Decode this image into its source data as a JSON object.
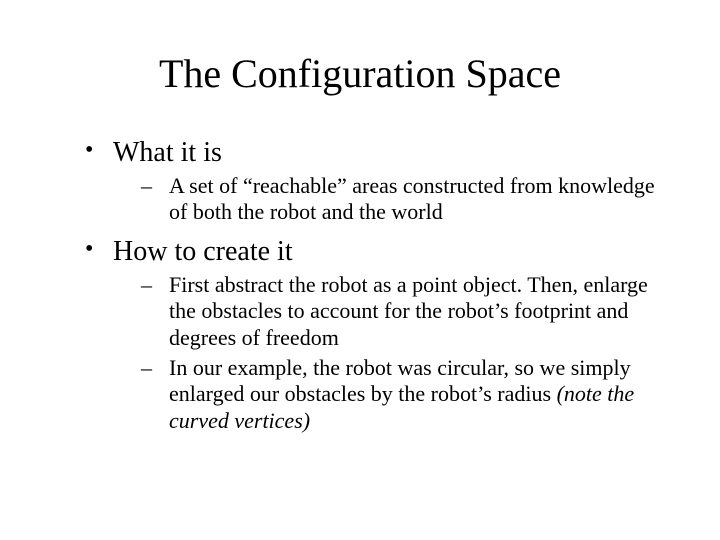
{
  "title": "The Configuration Space",
  "items": [
    {
      "label": "What it is",
      "subitems": [
        {
          "text": "A set of “reachable” areas constructed from knowledge of both the robot and the world"
        }
      ]
    },
    {
      "label": "How to create it",
      "subitems": [
        {
          "text": "First abstract the robot as a point object.  Then, enlarge the obstacles to account for the robot’s footprint and degrees of freedom"
        },
        {
          "text": "In our example, the robot was circular, so we simply enlarged our obstacles by the robot’s radius ",
          "italic_suffix": "(note the curved vertices)"
        }
      ]
    }
  ],
  "styling": {
    "background_color": "#ffffff",
    "text_color": "#000000",
    "font_family": "Times New Roman",
    "title_fontsize": 40,
    "level1_fontsize": 28,
    "level2_fontsize": 22
  }
}
